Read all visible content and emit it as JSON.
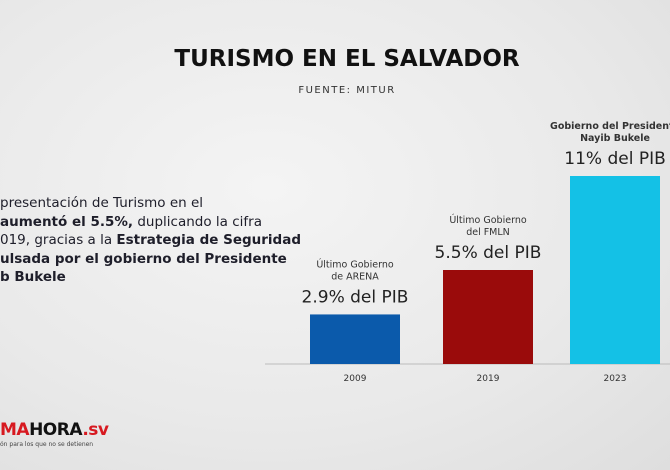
{
  "chart_data": {
    "type": "bar",
    "title": "TURISMO EN EL SALVADOR",
    "subtitle": "FUENTE: MITUR",
    "categories": [
      "2009",
      "2019",
      "2023"
    ],
    "values": [
      2.9,
      5.5,
      11
    ],
    "value_labels": [
      "2.9% del PIB",
      "5.5% del PIB",
      "11% del PIB"
    ],
    "colors": [
      "#0b5aab",
      "#9a0b0b",
      "#14c1e6"
    ],
    "bar_notes": [
      {
        "lines": [
          "Último Gobierno",
          "de ARENA"
        ],
        "bold": false
      },
      {
        "lines": [
          "Último Gobierno",
          "del FMLN"
        ],
        "bold": false
      },
      {
        "lines": [
          "Gobierno del Presidente",
          "Nayib Bukele"
        ],
        "bold": true
      }
    ]
  },
  "description": [
    [
      {
        "text": "presentación de Turismo en el",
        "bold": false
      }
    ],
    [
      {
        "text": "aumentó el 5.5%,",
        "bold": true
      },
      {
        "text": " duplicando la cifra",
        "bold": false
      }
    ],
    [
      {
        "text": "019, gracias a la ",
        "bold": false
      },
      {
        "text": "Estrategia de Seguridad",
        "bold": true
      }
    ],
    [
      {
        "text": "ulsada por el gobierno del Presidente",
        "bold": true
      }
    ],
    [
      {
        "text": "b Bukele",
        "bold": true
      }
    ]
  ],
  "logo": {
    "red": "MA",
    "black": "HORA",
    "suffix": ".sv",
    "tagline": "ón para los que no se detienen"
  }
}
